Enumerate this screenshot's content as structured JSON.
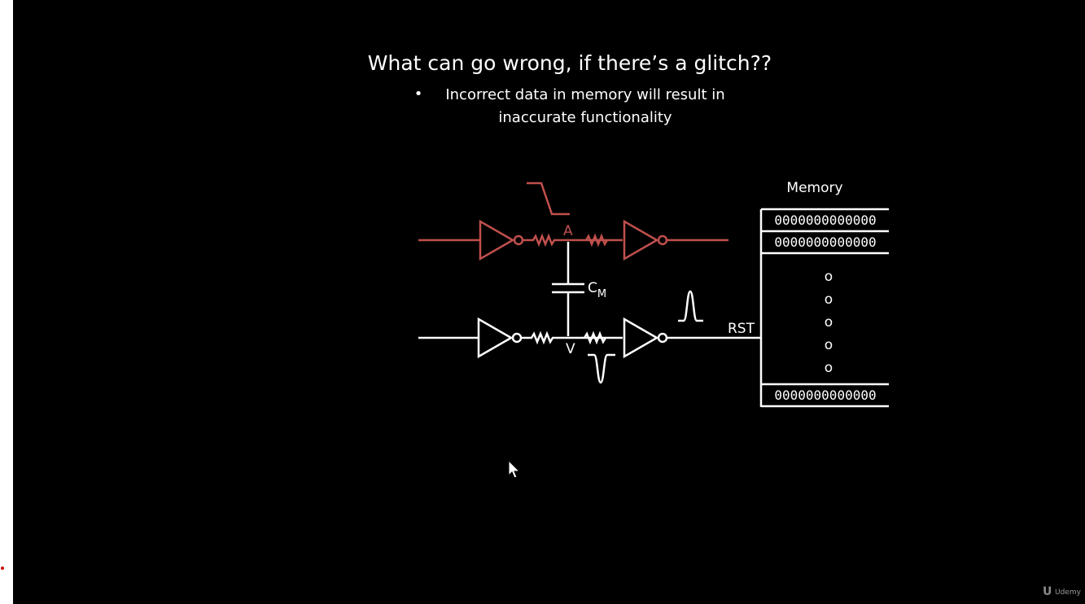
{
  "slide": {
    "title": "What can go wrong, if there’s a glitch??",
    "bullet_symbol": "•",
    "bullet_line1": "Incorrect data in memory will result in",
    "bullet_line2": "inaccurate functionality"
  },
  "circuit": {
    "node_a": "A",
    "node_v": "V",
    "cap_label": "C",
    "cap_subscript": "M",
    "reset_label": "RST",
    "aggressor_color": "#c0504d",
    "victim_color": "#ffffff"
  },
  "memory": {
    "title": "Memory",
    "rows_top": [
      "0000000000000",
      "0000000000000"
    ],
    "ellipsis": [
      "o",
      "o",
      "o",
      "o",
      "o"
    ],
    "rows_bottom": [
      "0000000000000"
    ]
  },
  "branding": {
    "logo_mark": "U",
    "logo_text": "Udemy"
  }
}
